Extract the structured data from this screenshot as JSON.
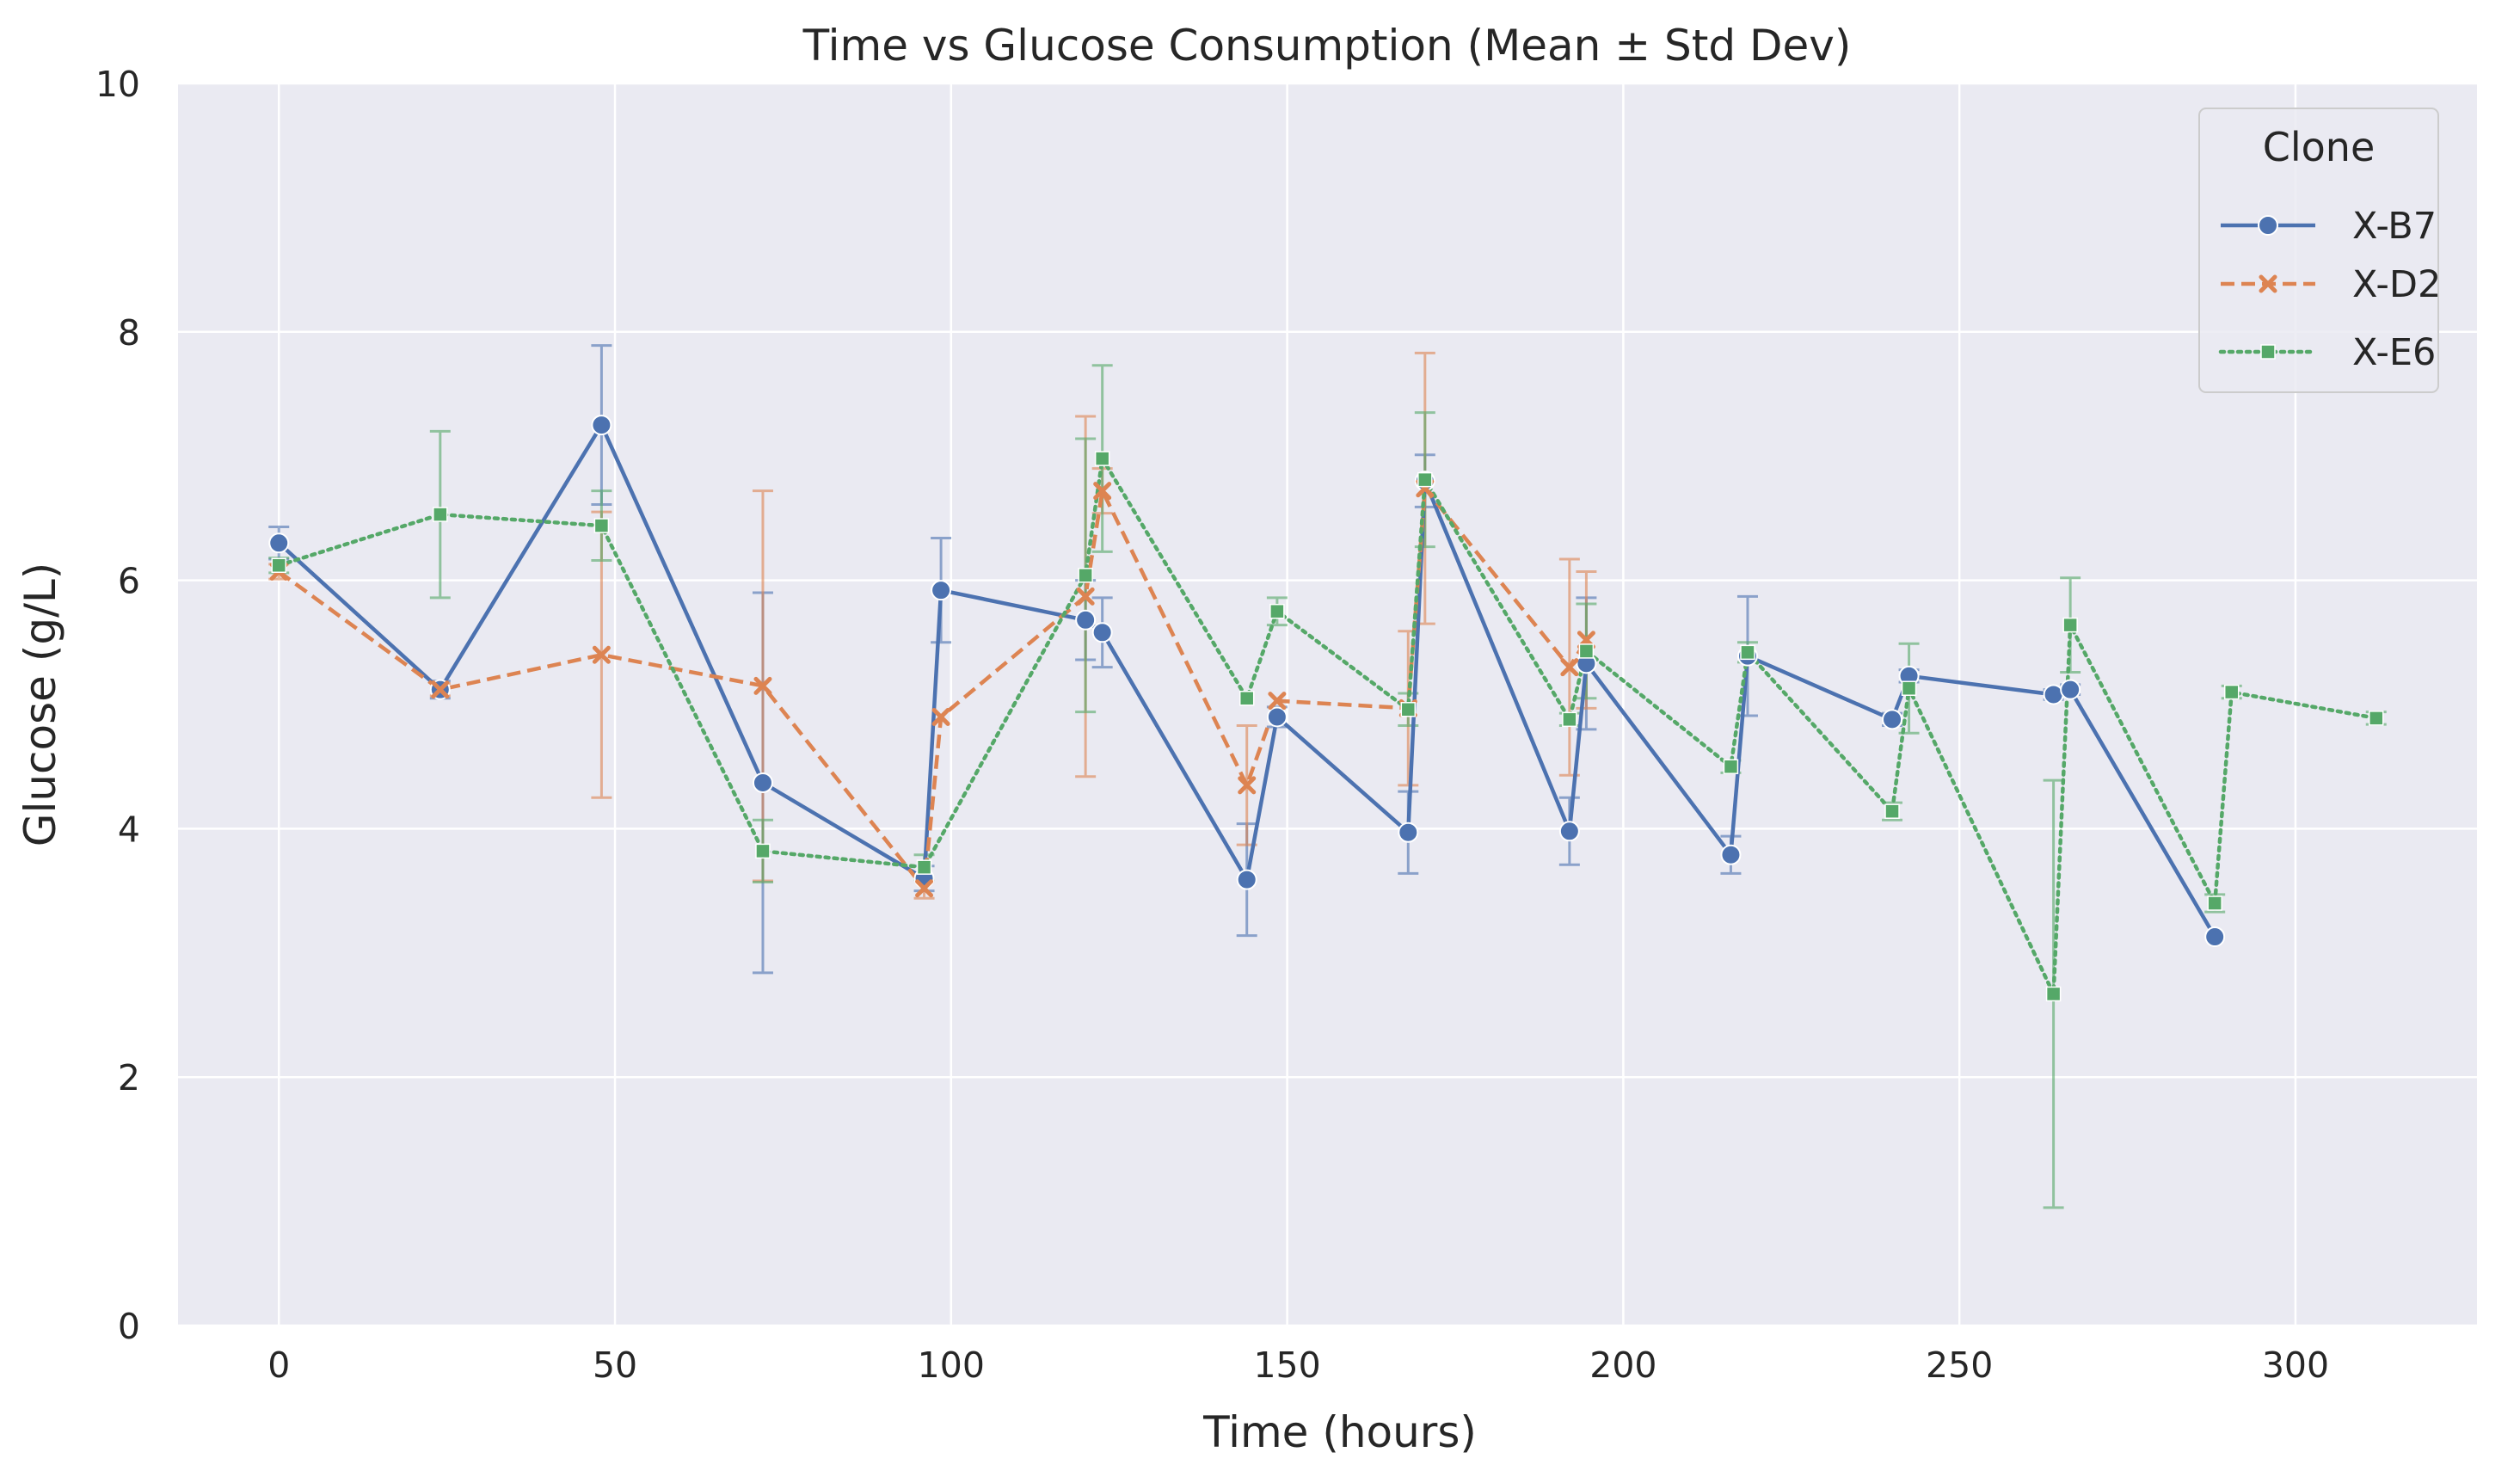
{
  "chart_data": {
    "type": "line",
    "title": "Time vs Glucose Consumption (Mean ± Std Dev)",
    "xlabel": "Time (hours)",
    "ylabel": "Glucose (g/L)",
    "xlim": [
      -15,
      327
    ],
    "ylim": [
      0,
      10
    ],
    "x_ticks": [
      0,
      50,
      100,
      150,
      200,
      250,
      300
    ],
    "y_ticks": [
      0,
      2,
      4,
      6,
      8,
      10
    ],
    "grid": true,
    "background": "#eaeaf2",
    "legend": {
      "title": "Clone",
      "position": "top-right"
    },
    "series": [
      {
        "name": "X-B7",
        "color": "#4c72b0",
        "line_style": "solid",
        "marker": "circle",
        "points": [
          {
            "x": 0,
            "y": 6.3,
            "err": 0.13
          },
          {
            "x": 24,
            "y": 5.12,
            "err": 0.07
          },
          {
            "x": 48,
            "y": 7.25,
            "err": 0.64
          },
          {
            "x": 72,
            "y": 4.37,
            "err": 1.53
          },
          {
            "x": 96,
            "y": 3.6,
            "err": 0.1
          },
          {
            "x": 98.5,
            "y": 5.92,
            "err": 0.42
          },
          {
            "x": 120,
            "y": 5.68,
            "err": 0.32
          },
          {
            "x": 122.5,
            "y": 5.58,
            "err": 0.28
          },
          {
            "x": 144,
            "y": 3.59,
            "err": 0.45
          },
          {
            "x": 148.5,
            "y": 4.9,
            "err": 0.08
          },
          {
            "x": 168,
            "y": 3.97,
            "err": 0.33
          },
          {
            "x": 170.5,
            "y": 6.8,
            "err": 0.21
          },
          {
            "x": 192,
            "y": 3.98,
            "err": 0.27
          },
          {
            "x": 194.5,
            "y": 5.33,
            "err": 0.53
          },
          {
            "x": 216,
            "y": 3.79,
            "err": 0.15
          },
          {
            "x": 218.5,
            "y": 5.39,
            "err": 0.48
          },
          {
            "x": 240,
            "y": 4.88,
            "err": 0.05
          },
          {
            "x": 242.5,
            "y": 5.23,
            "err": 0.05
          },
          {
            "x": 264,
            "y": 5.08,
            "err": 0.04
          },
          {
            "x": 266.5,
            "y": 5.12,
            "err": 0.04
          },
          {
            "x": 288,
            "y": 3.13,
            "err": 0.0
          }
        ]
      },
      {
        "name": "X-D2",
        "color": "#dd8452",
        "line_style": "dashed",
        "marker": "x",
        "points": [
          {
            "x": 0,
            "y": 6.07,
            "err": 0.06
          },
          {
            "x": 24,
            "y": 5.12,
            "err": 0.05
          },
          {
            "x": 48,
            "y": 5.4,
            "err": 1.15
          },
          {
            "x": 72,
            "y": 5.15,
            "err": 1.57
          },
          {
            "x": 96,
            "y": 3.52,
            "err": 0.08
          },
          {
            "x": 98.5,
            "y": 4.9,
            "err": 0.0
          },
          {
            "x": 120,
            "y": 5.87,
            "err": 1.45
          },
          {
            "x": 122.5,
            "y": 6.72,
            "err": 0.18
          },
          {
            "x": 144,
            "y": 4.35,
            "err": 0.48
          },
          {
            "x": 148.5,
            "y": 5.03,
            "err": 0.0
          },
          {
            "x": 168,
            "y": 4.97,
            "err": 0.62
          },
          {
            "x": 170.5,
            "y": 6.74,
            "err": 1.09
          },
          {
            "x": 192,
            "y": 5.3,
            "err": 0.87
          },
          {
            "x": 194.5,
            "y": 5.52,
            "err": 0.55
          }
        ]
      },
      {
        "name": "X-E6",
        "color": "#55a868",
        "line_style": "dotted",
        "marker": "square",
        "points": [
          {
            "x": 0,
            "y": 6.12,
            "err": 0.06
          },
          {
            "x": 24,
            "y": 6.53,
            "err": 0.67
          },
          {
            "x": 48,
            "y": 6.44,
            "err": 0.28
          },
          {
            "x": 72,
            "y": 3.82,
            "err": 0.25
          },
          {
            "x": 96,
            "y": 3.69,
            "err": 0.1
          },
          {
            "x": 120,
            "y": 6.04,
            "err": 1.1
          },
          {
            "x": 122.5,
            "y": 6.98,
            "err": 0.75
          },
          {
            "x": 144,
            "y": 5.05,
            "err": 0.0
          },
          {
            "x": 148.5,
            "y": 5.75,
            "err": 0.11
          },
          {
            "x": 168,
            "y": 4.96,
            "err": 0.13
          },
          {
            "x": 170.5,
            "y": 6.81,
            "err": 0.54
          },
          {
            "x": 192,
            "y": 4.88,
            "err": 0.05
          },
          {
            "x": 194.5,
            "y": 5.43,
            "err": 0.38
          },
          {
            "x": 216,
            "y": 4.5,
            "err": 0.05
          },
          {
            "x": 218.5,
            "y": 5.42,
            "err": 0.08
          },
          {
            "x": 240,
            "y": 4.14,
            "err": 0.07
          },
          {
            "x": 242.5,
            "y": 5.13,
            "err": 0.36
          },
          {
            "x": 264,
            "y": 2.67,
            "err": 1.72
          },
          {
            "x": 266.5,
            "y": 5.64,
            "err": 0.38
          },
          {
            "x": 288,
            "y": 3.4,
            "err": 0.07
          },
          {
            "x": 290.5,
            "y": 5.1,
            "err": 0.05
          },
          {
            "x": 312,
            "y": 4.89,
            "err": 0.05
          }
        ]
      }
    ]
  }
}
